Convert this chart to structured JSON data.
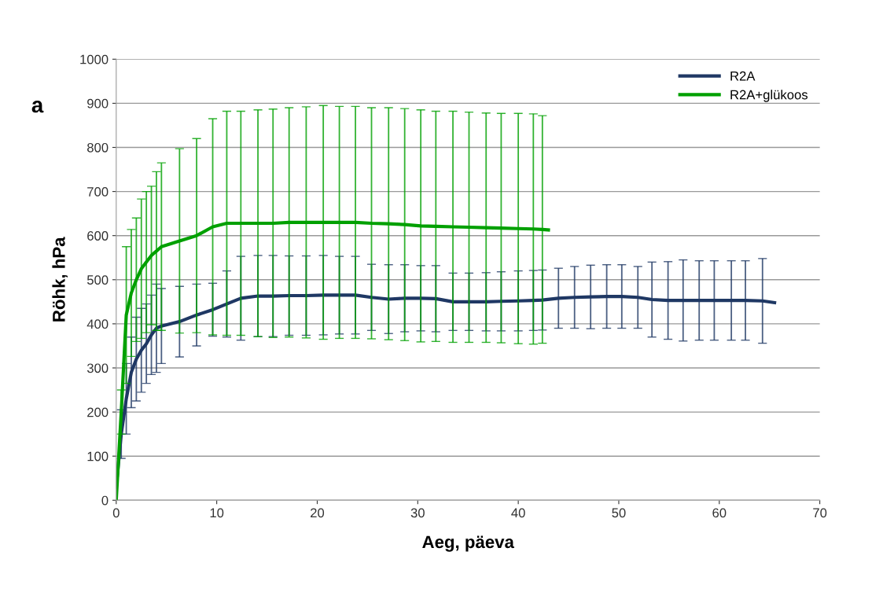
{
  "chart_data": {
    "type": "line",
    "xlabel": "Aeg, päeva",
    "ylabel": "Röhk, hPa",
    "annotations": [
      "a"
    ],
    "xlim": [
      0,
      70
    ],
    "xticks": [
      0,
      10,
      20,
      30,
      40,
      50,
      60,
      70
    ],
    "ylim": [
      0,
      1000
    ],
    "yticks": [
      0,
      100,
      200,
      300,
      400,
      500,
      600,
      700,
      800,
      900,
      1000
    ],
    "grid": "y",
    "legend": "top right",
    "marker": "none",
    "line_style": "solid",
    "series": [
      {
        "name": "R2A",
        "color": "#1f3864",
        "x": [
          0,
          0.5,
          1.0,
          1.5,
          2.0,
          2.5,
          3.0,
          3.5,
          4.0,
          4.5,
          6.3,
          8.0,
          9.6,
          11,
          12.4,
          14.1,
          15.6,
          17.2,
          18.9,
          20.6,
          22.2,
          23.8,
          25.4,
          27.1,
          28.7,
          30.3,
          31.8,
          33.5,
          35.1,
          36.8,
          38.3,
          40.0,
          41.5,
          42.4,
          44.0,
          45.6,
          47.2,
          48.8,
          50.3,
          51.9,
          53.3,
          54.9,
          56.4,
          58,
          59.5,
          61.2,
          62.6,
          64.3,
          65.5
        ],
        "values": [
          30,
          150,
          230,
          290,
          320,
          340,
          355,
          375,
          390,
          395,
          405,
          420,
          432,
          445,
          458,
          463,
          463,
          464,
          464,
          465,
          465,
          465,
          460,
          456,
          458,
          458,
          457,
          450,
          450,
          450,
          451,
          452,
          453,
          454,
          458,
          460,
          461,
          462,
          462,
          460,
          455,
          453,
          453,
          453,
          453,
          453,
          453,
          452,
          448
        ],
        "errors": [
          null,
          55,
          80,
          80,
          95,
          95,
          90,
          90,
          100,
          85,
          80,
          70,
          60,
          75,
          95,
          92,
          92,
          90,
          90,
          90,
          88,
          88,
          75,
          78,
          76,
          74,
          75,
          65,
          65,
          66,
          67,
          68,
          68,
          68,
          68,
          70,
          72,
          72,
          72,
          70,
          85,
          88,
          92,
          90,
          90,
          90,
          90,
          96,
          null
        ]
      },
      {
        "name": "R2A+glükoos",
        "color": "#00a000",
        "x": [
          0,
          0.5,
          1.0,
          1.5,
          2.0,
          2.5,
          3.0,
          3.5,
          4.0,
          4.5,
          6.3,
          8.0,
          9.6,
          11,
          12.4,
          14.1,
          15.6,
          17.2,
          18.9,
          20.6,
          22.2,
          23.8,
          25.4,
          27.1,
          28.7,
          30.3,
          31.8,
          33.5,
          35.1,
          36.8,
          38.3,
          40.0,
          41.5,
          42.4,
          43.0
        ],
        "values": [
          0,
          200,
          420,
          470,
          500,
          525,
          540,
          555,
          565,
          575,
          588,
          600,
          620,
          628,
          628,
          628,
          628,
          630,
          630,
          630,
          630,
          630,
          628,
          627,
          625,
          622,
          621,
          620,
          619,
          618,
          617,
          616,
          615,
          614,
          613
        ],
        "errors": [
          null,
          50,
          155,
          144,
          140,
          158,
          160,
          157,
          180,
          190,
          209,
          220,
          245,
          254,
          254,
          257,
          259,
          260,
          262,
          265,
          263,
          263,
          262,
          263,
          263,
          263,
          261,
          262,
          261,
          260,
          260,
          261,
          261,
          258,
          null
        ]
      }
    ]
  }
}
